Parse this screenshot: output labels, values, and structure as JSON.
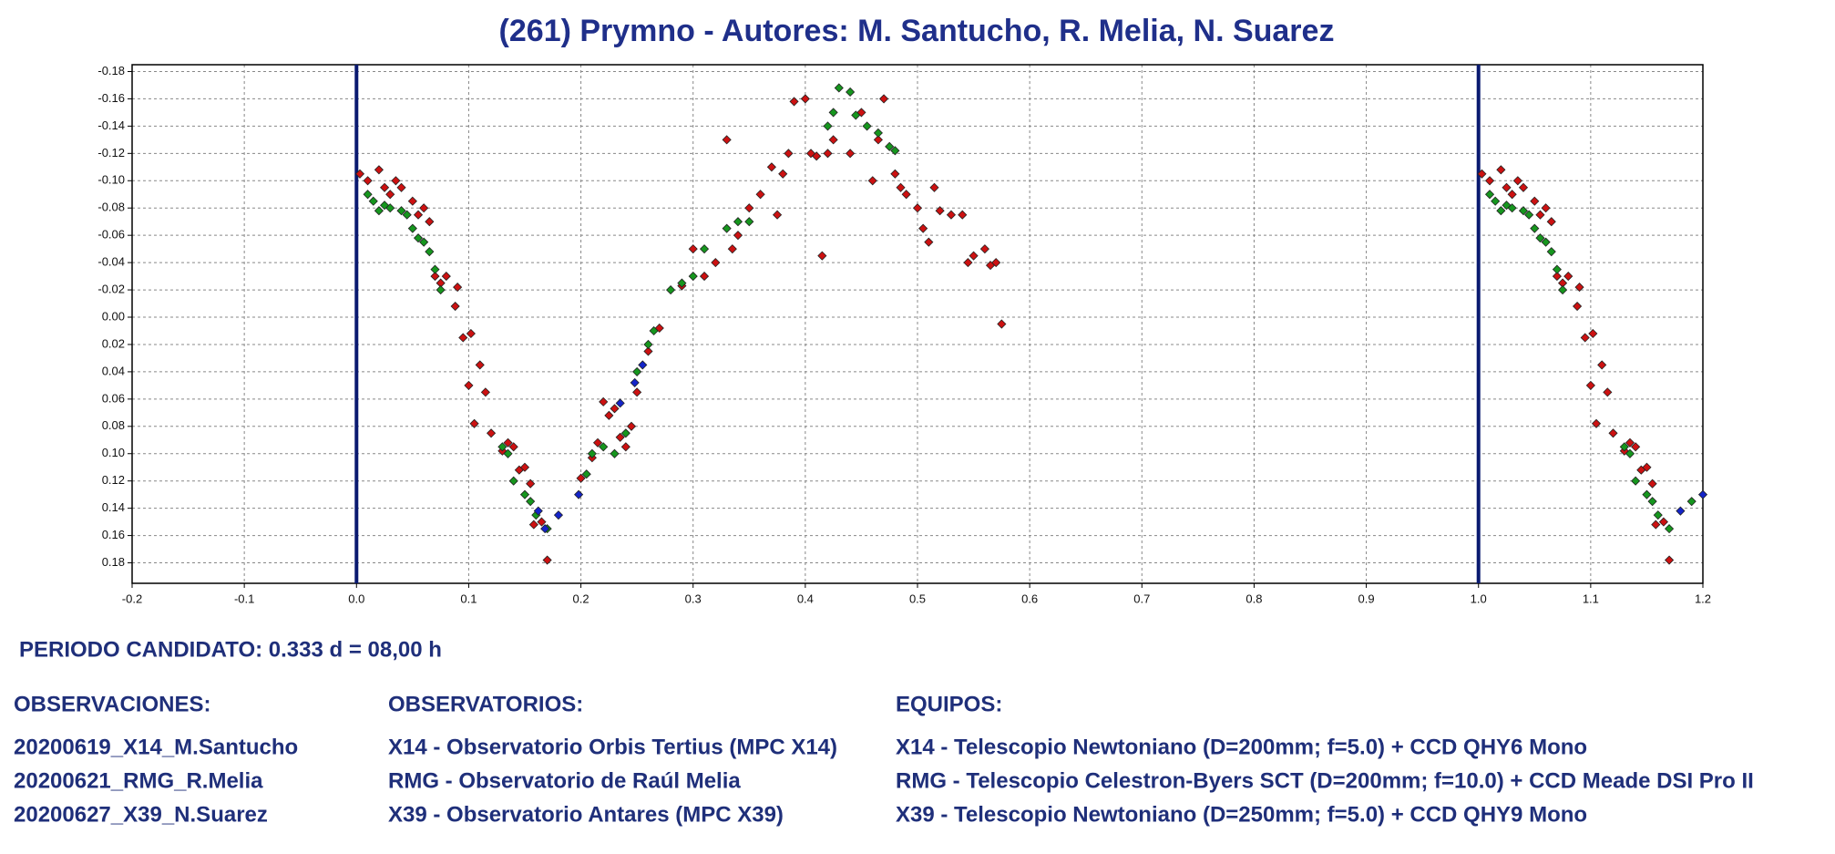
{
  "chart_data": {
    "type": "scatter",
    "title": "(261) Prymno - Autores: M. Santucho, R. Melia, N. Suarez",
    "xlim": [
      -0.2,
      1.2
    ],
    "xticks": [
      -0.2,
      -0.1,
      {
        "value": 0,
        "label": "0.0"
      },
      0.1,
      0.2,
      0.3,
      0.4,
      0.5,
      0.6,
      0.7,
      0.8,
      0.9,
      {
        "value": 1,
        "label": "1.0"
      },
      1.1,
      1.2
    ],
    "ylim": [
      -0.185,
      0.195
    ],
    "y_inverted": true,
    "yticks": [
      -0.18,
      -0.16,
      -0.14,
      -0.12,
      {
        "value": -0.1,
        "label": "-0.10"
      },
      -0.08,
      -0.06,
      -0.04,
      -0.02,
      {
        "value": 0,
        "label": "0.00"
      },
      0.02,
      0.04,
      0.06,
      0.08,
      {
        "value": 0.1,
        "label": "0.10"
      },
      0.12,
      0.14,
      0.16,
      0.18
    ],
    "grid": true,
    "vlines": [
      0,
      1
    ],
    "vline_color": "#0a1a70",
    "series": [
      {
        "color": "#cc1111",
        "x": [
          0.003,
          0.01,
          0.02,
          0.025,
          0.03,
          0.035,
          0.04,
          0.05,
          0.055,
          0.06,
          0.065,
          0.07,
          0.075,
          0.08,
          0.09,
          0.088,
          0.095,
          0.1,
          0.102,
          0.105,
          0.11,
          0.115,
          0.12,
          0.13,
          0.135,
          0.14,
          0.145,
          0.15,
          0.155,
          0.158,
          0.165,
          0.17,
          0.2,
          0.21,
          0.215,
          0.22,
          0.225,
          0.23,
          0.235,
          0.24,
          0.245,
          0.25,
          0.26,
          0.27,
          0.29,
          0.3,
          0.31,
          0.32,
          0.33,
          0.335,
          0.34,
          0.35,
          0.36,
          0.37,
          0.375,
          0.38,
          0.385,
          0.39,
          0.4,
          0.405,
          0.41,
          0.415,
          0.42,
          0.425,
          0.44,
          0.45,
          0.46,
          0.465,
          0.47,
          0.48,
          0.485,
          0.49,
          0.5,
          0.505,
          0.51,
          0.515,
          0.52,
          0.53,
          0.54,
          0.545,
          0.55,
          0.56,
          0.565,
          0.57,
          0.575,
          1.003,
          1.01,
          1.02,
          1.025,
          1.03,
          1.035,
          1.04,
          1.05,
          1.055,
          1.06,
          1.065,
          1.07,
          1.075,
          1.08,
          1.09,
          1.088,
          1.095,
          1.1,
          1.102,
          1.105,
          1.11,
          1.115,
          1.12,
          1.13,
          1.135,
          1.14,
          1.145,
          1.15,
          1.155,
          1.158,
          1.165,
          1.17
        ],
        "values": [
          -0.105,
          -0.1,
          -0.108,
          -0.095,
          -0.09,
          -0.1,
          -0.095,
          -0.085,
          -0.075,
          -0.08,
          -0.07,
          -0.03,
          -0.025,
          -0.03,
          -0.022,
          -0.008,
          0.015,
          0.05,
          0.012,
          0.078,
          0.035,
          0.055,
          0.085,
          0.098,
          0.092,
          0.095,
          0.112,
          0.11,
          0.122,
          0.152,
          0.15,
          0.178,
          0.118,
          0.103,
          0.092,
          0.062,
          0.072,
          0.067,
          0.088,
          0.095,
          0.08,
          0.055,
          0.025,
          0.008,
          -0.023,
          -0.05,
          -0.03,
          -0.04,
          -0.13,
          -0.05,
          -0.06,
          -0.08,
          -0.09,
          -0.11,
          -0.075,
          -0.105,
          -0.12,
          -0.158,
          -0.16,
          -0.12,
          -0.118,
          -0.045,
          -0.12,
          -0.13,
          -0.12,
          -0.15,
          -0.1,
          -0.13,
          -0.16,
          -0.105,
          -0.095,
          -0.09,
          -0.08,
          -0.065,
          -0.055,
          -0.095,
          -0.078,
          -0.075,
          -0.075,
          -0.04,
          -0.045,
          -0.05,
          -0.038,
          -0.04,
          0.005,
          -0.105,
          -0.1,
          -0.108,
          -0.095,
          -0.09,
          -0.1,
          -0.095,
          -0.085,
          -0.075,
          -0.08,
          -0.07,
          -0.03,
          -0.025,
          -0.03,
          -0.022,
          -0.008,
          0.015,
          0.05,
          0.012,
          0.078,
          0.035,
          0.055,
          0.085,
          0.098,
          0.092,
          0.095,
          0.112,
          0.11,
          0.122,
          0.152,
          0.15,
          0.178
        ]
      },
      {
        "color": "#16961e",
        "x": [
          0.01,
          0.015,
          0.02,
          0.025,
          0.03,
          0.04,
          0.045,
          0.05,
          0.055,
          0.06,
          0.065,
          0.07,
          0.075,
          0.13,
          0.135,
          0.14,
          0.15,
          0.155,
          0.16,
          0.17,
          0.205,
          0.21,
          0.22,
          0.23,
          0.24,
          0.25,
          0.26,
          0.265,
          0.28,
          0.29,
          0.3,
          0.31,
          0.33,
          0.34,
          0.35,
          0.42,
          0.425,
          0.43,
          0.44,
          0.445,
          0.455,
          0.465,
          0.475,
          0.48,
          1.01,
          1.015,
          1.02,
          1.025,
          1.03,
          1.04,
          1.045,
          1.05,
          1.055,
          1.06,
          1.065,
          1.07,
          1.075,
          1.13,
          1.135,
          1.14,
          1.15,
          1.155,
          1.16,
          1.17,
          1.19
        ],
        "values": [
          -0.09,
          -0.085,
          -0.078,
          -0.082,
          -0.08,
          -0.078,
          -0.075,
          -0.065,
          -0.058,
          -0.055,
          -0.048,
          -0.035,
          -0.02,
          0.095,
          0.1,
          0.12,
          0.13,
          0.135,
          0.145,
          0.155,
          0.115,
          0.1,
          0.095,
          0.1,
          0.085,
          0.04,
          0.02,
          0.01,
          -0.02,
          -0.025,
          -0.03,
          -0.05,
          -0.065,
          -0.07,
          -0.07,
          -0.14,
          -0.15,
          -0.168,
          -0.165,
          -0.148,
          -0.14,
          -0.135,
          -0.125,
          -0.122,
          -0.09,
          -0.085,
          -0.078,
          -0.082,
          -0.08,
          -0.078,
          -0.075,
          -0.065,
          -0.058,
          -0.055,
          -0.048,
          -0.035,
          -0.02,
          0.095,
          0.1,
          0.12,
          0.13,
          0.135,
          0.145,
          0.155,
          0.135
        ]
      },
      {
        "color": "#1424c8",
        "x": [
          0.162,
          0.168,
          0.18,
          0.198,
          0.235,
          0.248,
          0.255,
          1.18,
          1.2
        ],
        "values": [
          0.142,
          0.155,
          0.145,
          0.13,
          0.063,
          0.048,
          0.035,
          0.142,
          0.13
        ]
      }
    ]
  },
  "info": {
    "period": "PERIODO CANDIDATO: 0.333 d = 08,00 h",
    "observaciones": {
      "title": "OBSERVACIONES:",
      "items": [
        "20200619_X14_M.Santucho",
        "20200621_RMG_R.Melia",
        "20200627_X39_N.Suarez"
      ]
    },
    "observatorios": {
      "title": "OBSERVATORIOS:",
      "items": [
        "X14 - Observatorio Orbis Tertius (MPC X14)",
        "RMG - Observatorio de Raúl Melia",
        "X39 - Observatorio Antares (MPC X39)"
      ]
    },
    "equipos": {
      "title": "EQUIPOS:",
      "items": [
        "X14 - Telescopio Newtoniano (D=200mm; f=5.0) + CCD QHY6 Mono",
        "RMG - Telescopio Celestron-Byers SCT (D=200mm; f=10.0) + CCD Meade DSI Pro II",
        "X39 - Telescopio Newtoniano (D=250mm; f=5.0) + CCD QHY9 Mono"
      ]
    }
  }
}
